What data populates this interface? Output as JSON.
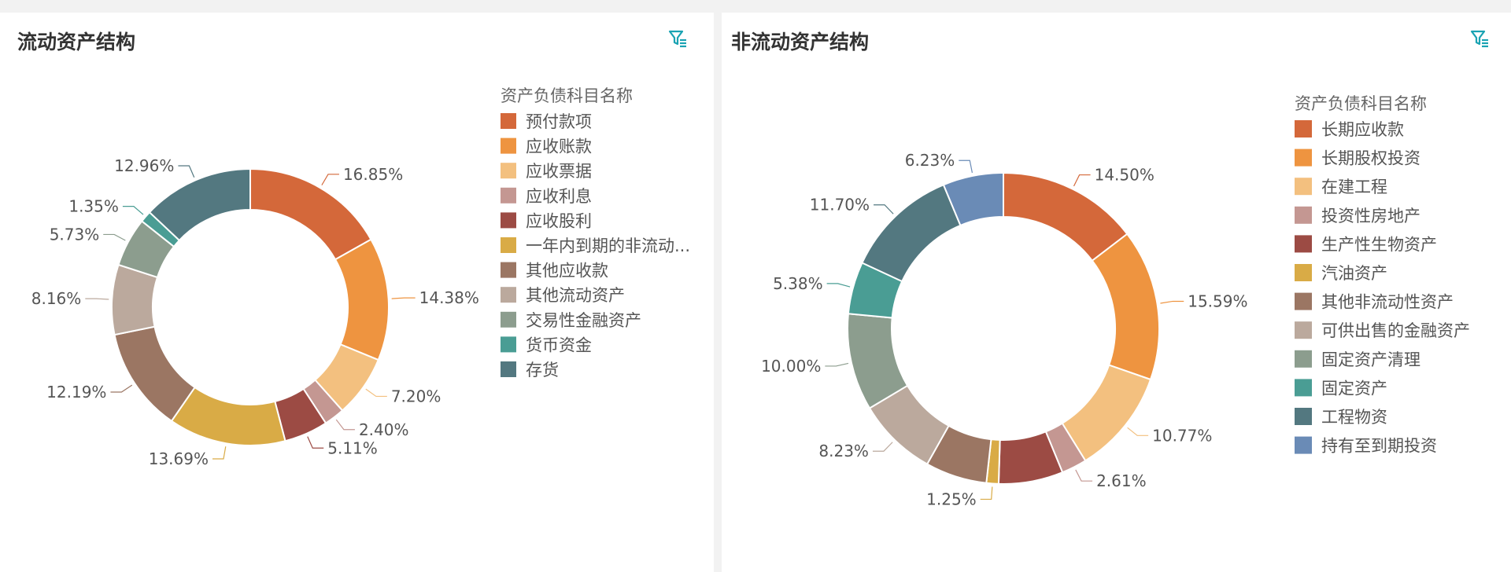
{
  "chart_data": [
    {
      "type": "pie",
      "title": "流动资产结构",
      "legend_title": "资产负债科目名称",
      "legend_position": "right",
      "donut": true,
      "categories": [
        "预付款项",
        "应收账款",
        "应收票据",
        "应收利息",
        "应收股利",
        "一年内到期的非流动...",
        "其他应收款",
        "其他流动资产",
        "交易性金融资产",
        "货币资金",
        "存货"
      ],
      "values": [
        16.85,
        14.38,
        7.2,
        2.4,
        5.11,
        13.69,
        12.19,
        8.16,
        5.73,
        1.35,
        12.96
      ],
      "labels": [
        "16.85%",
        "14.38%",
        "7.20%",
        "2.40%",
        "5.11%",
        "13.69%",
        "12.19%",
        "8.16%",
        "5.73%",
        "1.35%",
        "12.96%"
      ],
      "colors": [
        "#d4683a",
        "#ee9440",
        "#f3c07f",
        "#c49792",
        "#9c4b44",
        "#d9ab46",
        "#9b7663",
        "#bba99d",
        "#8c9d8e",
        "#4a9d94",
        "#537880"
      ]
    },
    {
      "type": "pie",
      "title": "非流动资产结构",
      "legend_title": "资产负债科目名称",
      "legend_position": "right",
      "donut": true,
      "categories": [
        "长期应收款",
        "长期股权投资",
        "在建工程",
        "投资性房地产",
        "生产性生物资产",
        "汽油资产",
        "其他非流动性资产",
        "可供出售的金融资产",
        "固定资产清理",
        "固定资产",
        "工程物资",
        "持有至到期投资"
      ],
      "values": [
        14.5,
        15.59,
        10.77,
        2.61,
        6.63,
        1.25,
        6.34,
        8.23,
        10.0,
        5.38,
        11.7,
        6.23
      ],
      "labels": [
        "14.50%",
        "15.59%",
        "10.77%",
        "2.61%",
        "",
        "1.25%",
        "",
        "8.23%",
        "10.00%",
        "5.38%",
        "11.70%",
        "6.23%"
      ],
      "colors": [
        "#d4683a",
        "#ee9440",
        "#f3c07f",
        "#c49792",
        "#9c4b44",
        "#d9ab46",
        "#9b7663",
        "#bba99d",
        "#8c9d8e",
        "#4a9d94",
        "#537880",
        "#6a8bb6"
      ]
    }
  ],
  "icons": {
    "filter": "filter-icon",
    "accent": "#1aa3b3"
  }
}
